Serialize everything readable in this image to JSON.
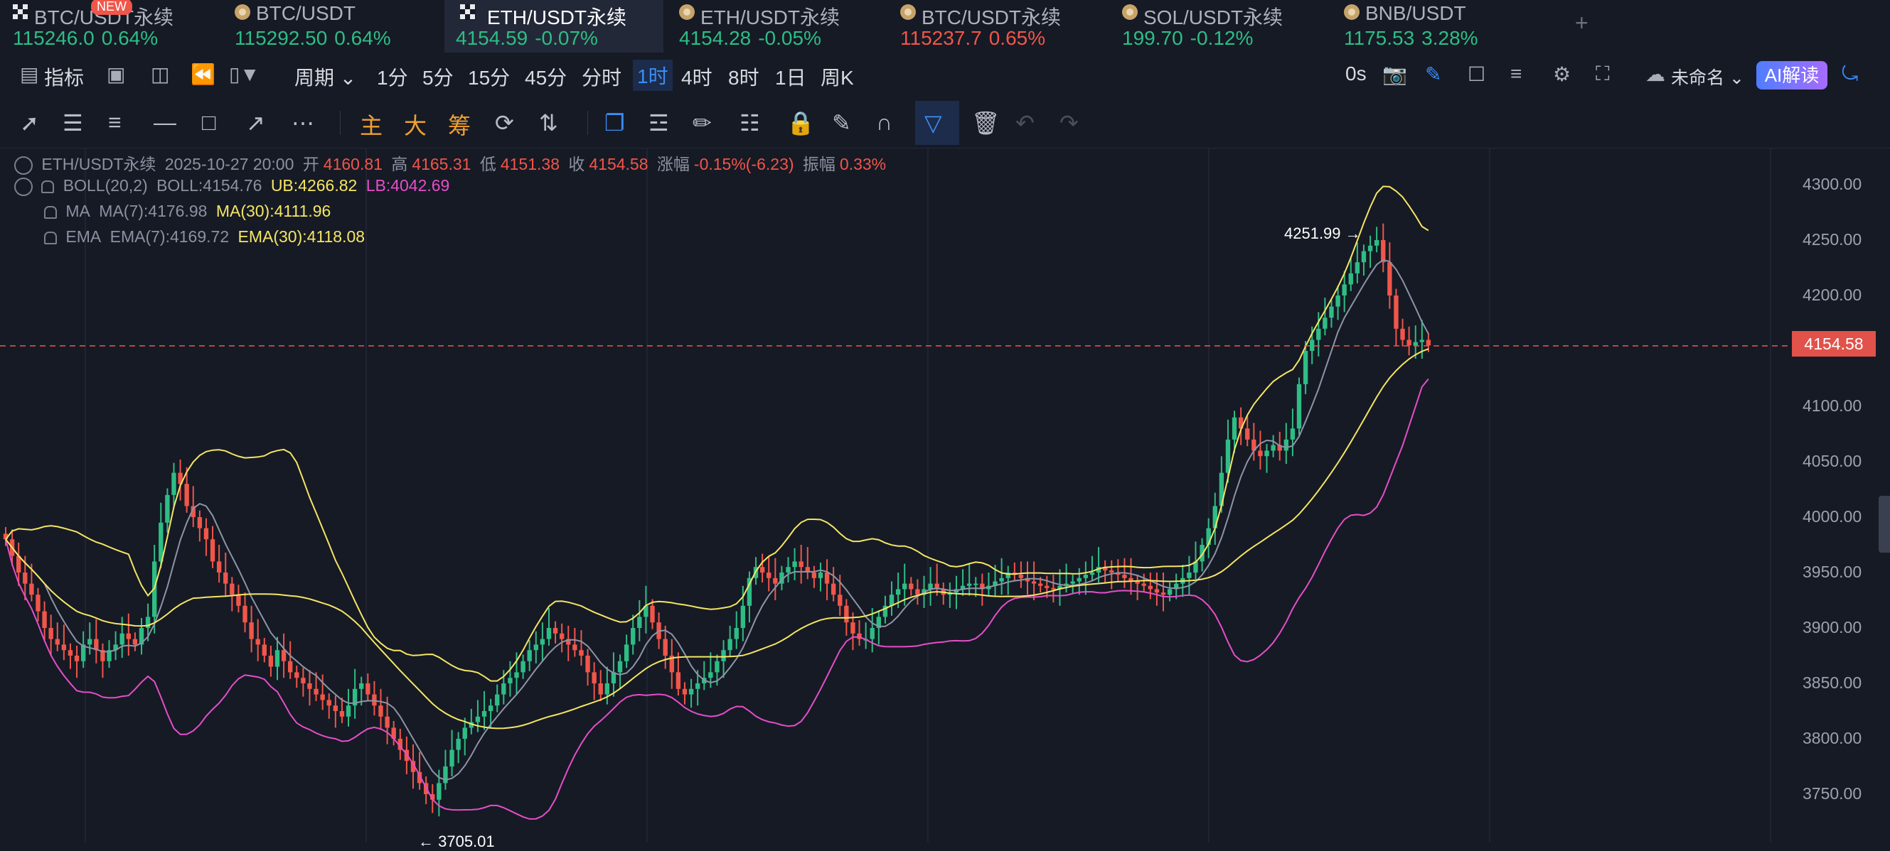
{
  "tabs": [
    {
      "name": "BTC/USDT永续",
      "price": "115246.0",
      "change": "0.64%",
      "dir": "up",
      "icon": "grid-icon",
      "badge": "NEW"
    },
    {
      "name": "BTC/USDT",
      "price": "115292.50",
      "change": "0.64%",
      "dir": "up",
      "icon": "coin-icon"
    },
    {
      "name": "ETH/USDT永续",
      "price": "4154.59",
      "change": "-0.07%",
      "dir": "up",
      "icon": "grid-icon",
      "active": true
    },
    {
      "name": "ETH/USDT永续",
      "price": "4154.28",
      "change": "-0.05%",
      "dir": "up",
      "icon": "coin-icon"
    },
    {
      "name": "BTC/USDT永续",
      "price": "115237.7",
      "change": "0.65%",
      "dir": "down",
      "icon": "coin-icon"
    },
    {
      "name": "SOL/USDT永续",
      "price": "199.70",
      "change": "-0.12%",
      "dir": "up",
      "icon": "coin-icon"
    },
    {
      "name": "BNB/USDT",
      "price": "1175.53",
      "change": "3.28%",
      "dir": "up",
      "icon": "coin-icon"
    }
  ],
  "add_tab_label": "+",
  "toolbar": {
    "indicator_label": "指标",
    "period_label": "周期",
    "intervals": [
      "1分",
      "5分",
      "15分",
      "45分",
      "分时",
      "1时",
      "4时",
      "8时",
      "1日",
      "周K"
    ],
    "selected_interval": "1时",
    "countdown": "0s",
    "layout_name": "未命名",
    "ai_label": "AI解读"
  },
  "drawtools": {
    "main": "主",
    "big": "大",
    "chips": "筹"
  },
  "info": {
    "symbol": "ETH/USDT永续",
    "datetime": "2025-10-27 20:00",
    "open_label": "开",
    "open": "4160.81",
    "high_label": "高",
    "high": "4165.31",
    "low_label": "低",
    "low": "4151.38",
    "close_label": "收",
    "close": "4154.58",
    "change_label": "涨幅",
    "change": "-0.15%(-6.23)",
    "amp_label": "振幅",
    "amp": "0.33%",
    "boll_name": "BOLL(20,2)",
    "boll_mid": "BOLL:4154.76",
    "boll_ub": "UB:4266.82",
    "boll_lb": "LB:4042.69",
    "ma_name": "MA",
    "ma7": "MA(7):4176.98",
    "ma30": "MA(30):4111.96",
    "ema_name": "EMA",
    "ema7": "EMA(7):4169.72",
    "ema30": "EMA(30):4118.08"
  },
  "price_axis": [
    "4300.00",
    "4250.00",
    "4200.00",
    "4150.00",
    "4100.00",
    "4050.00",
    "4000.00",
    "3950.00",
    "3900.00",
    "3850.00",
    "3800.00",
    "3750.00"
  ],
  "current_price": "4154.58",
  "high_note": "4251.99 →",
  "low_note": "← 3705.01",
  "colors": {
    "up": "#2ebd85",
    "down": "#f0564a",
    "boll_upper": "#f5e663",
    "boll_lower": "#e64ec8",
    "ma7": "#8e94a8",
    "bg": "#161a25"
  },
  "chart_data": {
    "type": "candlestick",
    "symbol": "ETH/USDT永续",
    "interval": "1时",
    "ylim": [
      3730,
      4330
    ],
    "y_ticks": [
      4300,
      4250,
      4200,
      4150,
      4100,
      4050,
      4000,
      3950,
      3900,
      3850,
      3800,
      3750
    ],
    "last_close": 4154.58,
    "annotations": [
      {
        "text": "4251.99",
        "value": 4251.99
      },
      {
        "text": "3705.01",
        "value": 3705.01
      }
    ],
    "closes": [
      3980,
      3965,
      3950,
      3940,
      3930,
      3915,
      3900,
      3890,
      3885,
      3880,
      3875,
      3870,
      3885,
      3890,
      3880,
      3870,
      3880,
      3885,
      3895,
      3890,
      3885,
      3900,
      3910,
      3960,
      3995,
      4020,
      4040,
      4030,
      4010,
      4000,
      3990,
      3980,
      3960,
      3950,
      3940,
      3930,
      3920,
      3905,
      3890,
      3885,
      3875,
      3865,
      3880,
      3870,
      3860,
      3855,
      3850,
      3845,
      3840,
      3835,
      3830,
      3825,
      3820,
      3830,
      3845,
      3850,
      3840,
      3830,
      3820,
      3810,
      3800,
      3790,
      3780,
      3770,
      3760,
      3750,
      3745,
      3760,
      3775,
      3790,
      3800,
      3810,
      3815,
      3820,
      3825,
      3830,
      3840,
      3850,
      3855,
      3860,
      3870,
      3880,
      3885,
      3890,
      3900,
      3895,
      3890,
      3885,
      3880,
      3875,
      3860,
      3850,
      3840,
      3850,
      3860,
      3870,
      3885,
      3900,
      3910,
      3920,
      3905,
      3890,
      3875,
      3860,
      3845,
      3840,
      3845,
      3850,
      3855,
      3860,
      3870,
      3880,
      3890,
      3900,
      3920,
      3945,
      3955,
      3950,
      3945,
      3940,
      3950,
      3955,
      3960,
      3955,
      3950,
      3945,
      3950,
      3940,
      3930,
      3920,
      3905,
      3895,
      3890,
      3890,
      3900,
      3910,
      3920,
      3930,
      3935,
      3940,
      3935,
      3930,
      3935,
      3940,
      3935,
      3930,
      3932,
      3935,
      3938,
      3940,
      3940,
      3935,
      3938,
      3942,
      3945,
      3950,
      3948,
      3945,
      3942,
      3940,
      3938,
      3936,
      3935,
      3938,
      3940,
      3942,
      3945,
      3948,
      3950,
      3955,
      3952,
      3950,
      3948,
      3945,
      3942,
      3940,
      3938,
      3935,
      3932,
      3930,
      3935,
      3940,
      3945,
      3950,
      3960,
      3975,
      3990,
      4010,
      4040,
      4070,
      4090,
      4080,
      4070,
      4060,
      4055,
      4060,
      4065,
      4060,
      4070,
      4080,
      4120,
      4150,
      4160,
      4170,
      4180,
      4190,
      4200,
      4210,
      4220,
      4230,
      4240,
      4245,
      4250,
      4230,
      4200,
      4170,
      4160,
      4155,
      4158,
      4160,
      4155
    ]
  }
}
